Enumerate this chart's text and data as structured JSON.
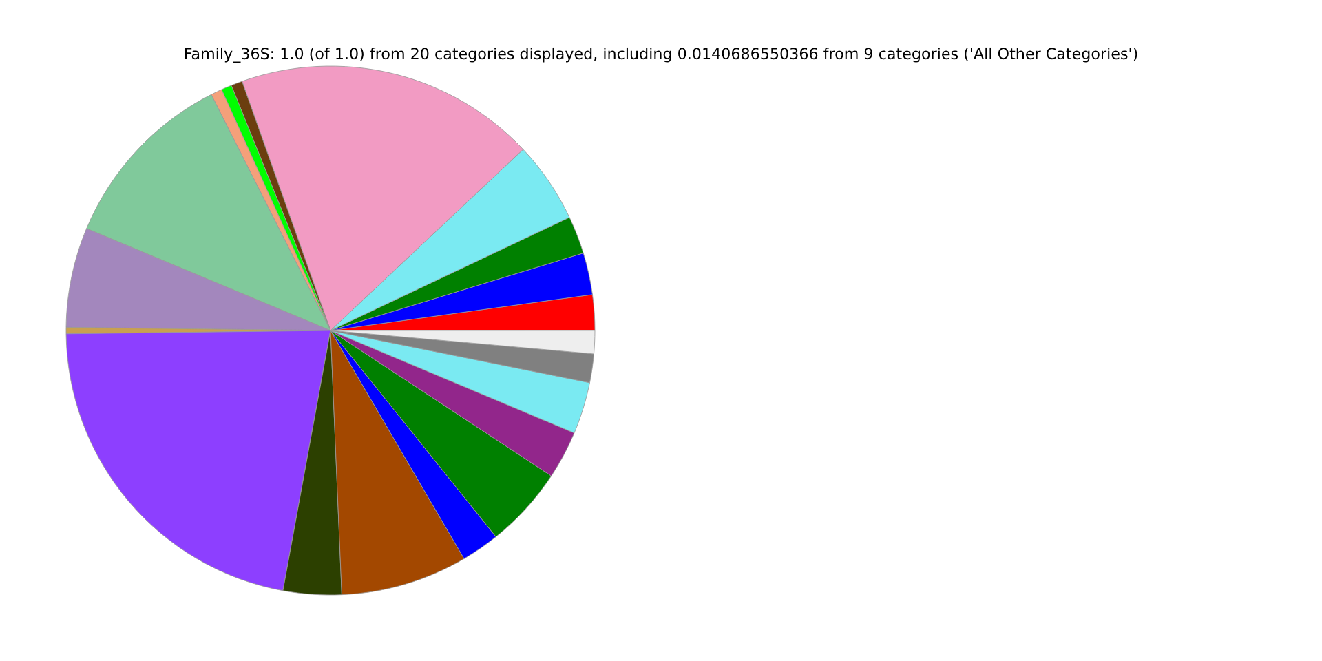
{
  "chart_data": {
    "type": "pie",
    "title": "Family_36S: 1.0 (of 1.0) from 20 categories displayed, including 0.0140686550366 from 9 categories ('All Other Categories')",
    "categories": [
      null,
      null,
      null,
      null,
      null,
      null,
      null,
      null,
      null,
      null,
      null,
      null,
      null,
      null,
      null,
      null,
      null,
      null,
      null,
      null
    ],
    "values": [
      2.17,
      2.56,
      2.31,
      4.97,
      18.42,
      0.69,
      0.64,
      0.69,
      11.25,
      6.11,
      0.39,
      21.92,
      3.56,
      7.75,
      2.33,
      4.97,
      2.94,
      3.17,
      1.75,
      1.41
    ],
    "colors": [
      "#ff0000",
      "#0000ff",
      "#008000",
      "#7aeaf2",
      "#f29bc3",
      "#6b3e0f",
      "#00ff00",
      "#f4a07a",
      "#80c99b",
      "#a387bd",
      "#c8a050",
      "#8d3fff",
      "#2c4000",
      "#a34800",
      "#0000ff",
      "#008000",
      "#92268b",
      "#7aeaf2",
      "#808080",
      "#eeeeee"
    ]
  }
}
